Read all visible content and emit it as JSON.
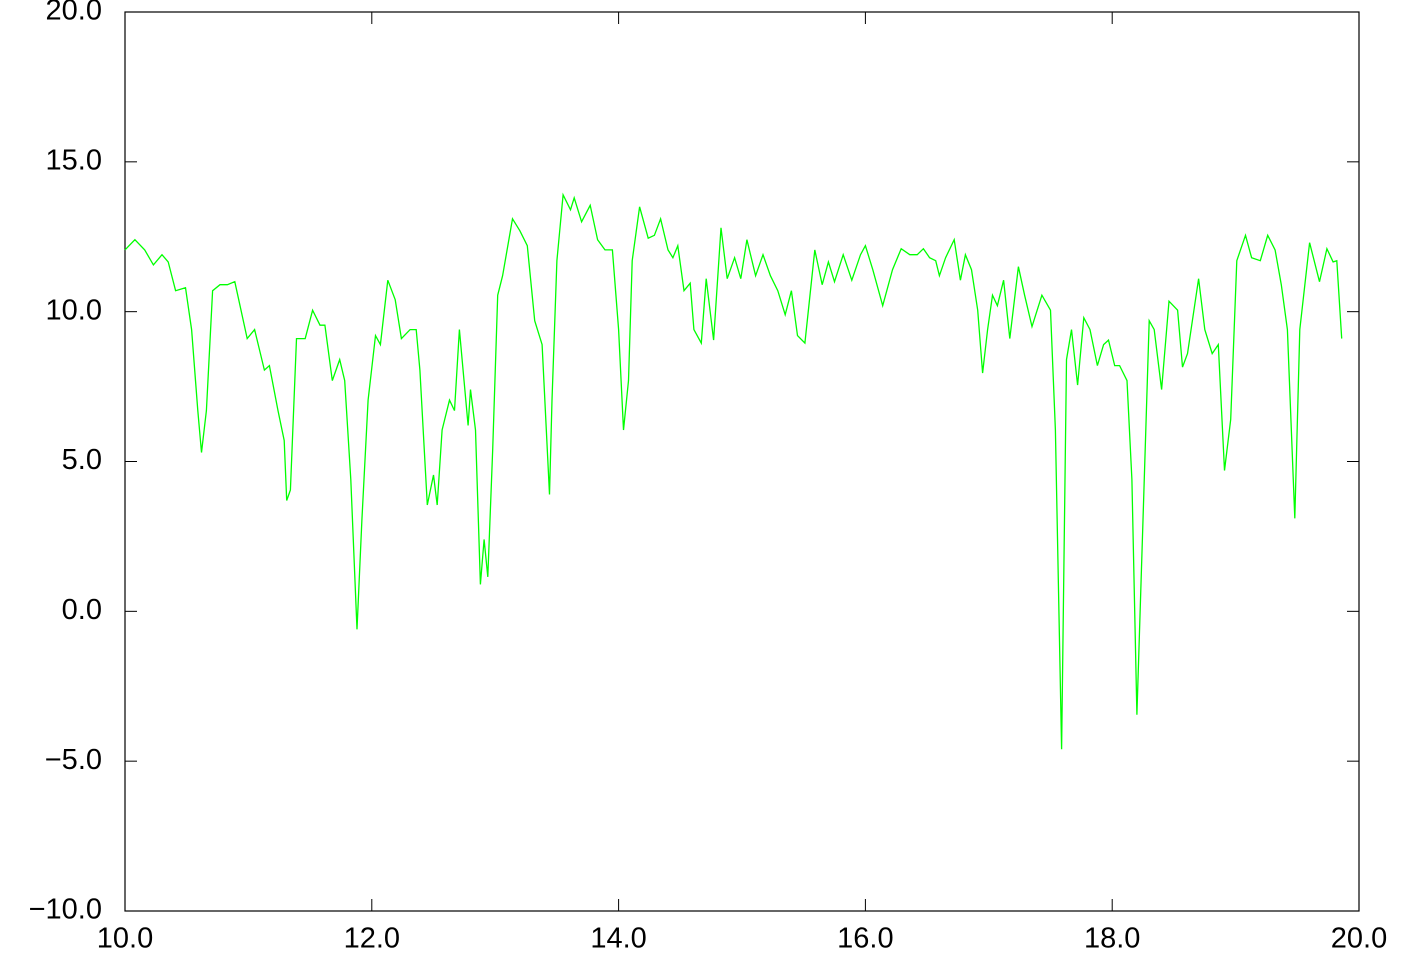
{
  "chart_data": {
    "type": "line",
    "xlim": [
      10,
      20
    ],
    "xticks": [
      {
        "value": 10,
        "label": "10.0"
      },
      {
        "value": 12,
        "label": "12.0"
      },
      {
        "value": 14,
        "label": "14.0"
      },
      {
        "value": 16,
        "label": "16.0"
      },
      {
        "value": 18,
        "label": "18.0"
      },
      {
        "value": 20,
        "label": "20.0"
      }
    ],
    "ylim": [
      -10,
      20
    ],
    "yticks": [
      {
        "value": -10,
        "label": "−10.0"
      },
      {
        "value": -5,
        "label": "−5.0"
      },
      {
        "value": 0,
        "label": "0.0"
      },
      {
        "value": 5,
        "label": "5.0"
      },
      {
        "value": 10,
        "label": "10.0"
      },
      {
        "value": 15,
        "label": "15.0"
      },
      {
        "value": 20,
        "label": "20.0"
      }
    ],
    "x": [
      10.0,
      10.08,
      10.16,
      10.23,
      10.3,
      10.35,
      10.41,
      10.49,
      10.54,
      10.59,
      10.62,
      10.66,
      10.71,
      10.77,
      10.83,
      10.89,
      10.99,
      11.05,
      11.13,
      11.17,
      11.24,
      11.29,
      11.31,
      11.34,
      11.39,
      11.46,
      11.52,
      11.58,
      11.62,
      11.68,
      11.74,
      11.78,
      11.83,
      11.88,
      11.92,
      11.97,
      12.03,
      12.07,
      12.13,
      12.19,
      12.24,
      12.31,
      12.36,
      12.39,
      12.45,
      12.5,
      12.53,
      12.57,
      12.63,
      12.67,
      12.71,
      12.78,
      12.8,
      12.84,
      12.88,
      12.91,
      12.94,
      12.98,
      13.02,
      13.06,
      13.14,
      13.2,
      13.26,
      13.32,
      13.38,
      13.44,
      13.46,
      13.5,
      13.55,
      13.61,
      13.64,
      13.7,
      13.77,
      13.83,
      13.89,
      13.95,
      14.0,
      14.04,
      14.08,
      14.11,
      14.17,
      14.24,
      14.29,
      14.34,
      14.4,
      14.44,
      14.48,
      14.53,
      14.58,
      14.61,
      14.67,
      14.71,
      14.77,
      14.83,
      14.88,
      14.94,
      14.99,
      15.04,
      15.11,
      15.17,
      15.23,
      15.29,
      15.35,
      15.4,
      15.45,
      15.51,
      15.59,
      15.65,
      15.7,
      15.75,
      15.82,
      15.89,
      15.96,
      16.0,
      16.06,
      16.14,
      16.22,
      16.29,
      16.36,
      16.42,
      16.47,
      16.52,
      16.57,
      16.6,
      16.65,
      16.72,
      16.77,
      16.81,
      16.86,
      16.91,
      16.95,
      16.99,
      17.03,
      17.07,
      17.12,
      17.17,
      17.24,
      17.29,
      17.35,
      17.43,
      17.5,
      17.54,
      17.59,
      17.63,
      17.67,
      17.72,
      17.77,
      17.82,
      17.88,
      17.93,
      17.97,
      18.02,
      18.06,
      18.12,
      18.16,
      18.2,
      18.25,
      18.3,
      18.34,
      18.4,
      18.46,
      18.53,
      18.57,
      18.61,
      18.7,
      18.75,
      18.81,
      18.86,
      18.91,
      18.96,
      19.01,
      19.08,
      19.13,
      19.2,
      19.26,
      19.32,
      19.37,
      19.42,
      19.48,
      19.52,
      19.6,
      19.68,
      19.74,
      19.79,
      19.82,
      19.86
    ],
    "series": [
      {
        "color": "#00ff00",
        "values": [
          12.06,
          12.4,
          12.06,
          11.56,
          11.9,
          11.66,
          10.7,
          10.8,
          9.4,
          6.7,
          5.3,
          6.7,
          10.7,
          10.9,
          10.9,
          11.0,
          9.1,
          9.4,
          8.05,
          8.2,
          6.7,
          5.7,
          3.7,
          4.05,
          9.1,
          9.1,
          10.05,
          9.55,
          9.55,
          7.7,
          8.4,
          7.7,
          4.4,
          -0.6,
          3.05,
          7.05,
          9.2,
          8.9,
          11.05,
          10.4,
          9.1,
          9.4,
          9.4,
          8.05,
          3.55,
          4.55,
          3.55,
          6.05,
          7.05,
          6.7,
          9.4,
          6.2,
          7.4,
          6.05,
          0.9,
          2.4,
          1.15,
          5.4,
          10.55,
          11.2,
          13.1,
          12.7,
          12.2,
          9.7,
          8.9,
          3.9,
          7.05,
          11.7,
          13.9,
          13.4,
          13.8,
          13.0,
          13.55,
          12.4,
          12.06,
          12.06,
          9.4,
          6.05,
          7.7,
          11.7,
          13.5,
          12.45,
          12.55,
          13.1,
          12.06,
          11.8,
          12.2,
          10.7,
          10.95,
          9.4,
          8.95,
          11.1,
          9.05,
          12.8,
          11.1,
          11.8,
          11.1,
          12.4,
          11.2,
          11.9,
          11.2,
          10.7,
          9.9,
          10.7,
          9.2,
          8.95,
          12.06,
          10.9,
          11.66,
          11.0,
          11.9,
          11.05,
          11.9,
          12.2,
          11.4,
          10.2,
          11.4,
          12.1,
          11.9,
          11.9,
          12.1,
          11.8,
          11.7,
          11.2,
          11.8,
          12.4,
          11.05,
          11.9,
          11.4,
          10.05,
          7.95,
          9.4,
          10.55,
          10.2,
          11.05,
          9.1,
          11.5,
          10.55,
          9.5,
          10.55,
          10.05,
          6.05,
          -4.6,
          8.4,
          9.4,
          7.55,
          9.8,
          9.4,
          8.2,
          8.9,
          9.05,
          8.2,
          8.2,
          7.7,
          4.4,
          -3.45,
          3.05,
          9.7,
          9.4,
          7.4,
          10.35,
          10.05,
          8.15,
          8.6,
          11.1,
          9.4,
          8.6,
          8.9,
          4.7,
          6.4,
          11.7,
          12.55,
          11.8,
          11.7,
          12.55,
          12.06,
          10.9,
          9.4,
          3.1,
          9.4,
          12.3,
          11.0,
          12.1,
          11.66,
          11.7,
          9.1
        ]
      }
    ]
  }
}
